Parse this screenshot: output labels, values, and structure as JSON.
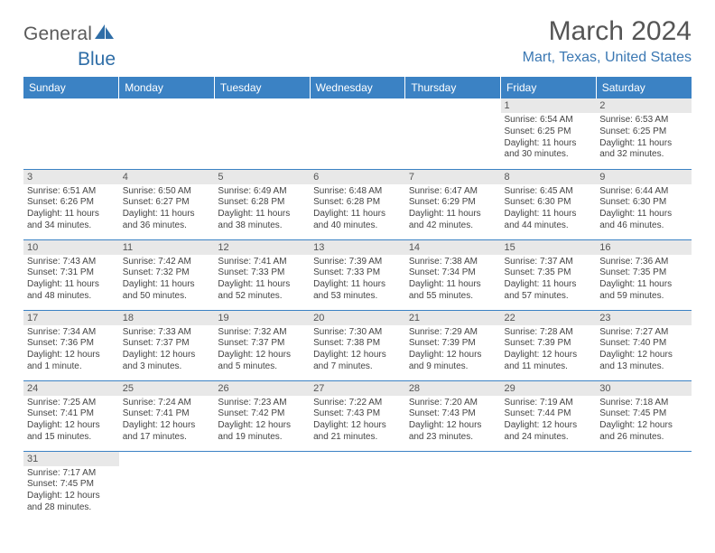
{
  "brand": {
    "word1": "General",
    "word2": "Blue"
  },
  "title": "March 2024",
  "location": "Mart, Texas, United States",
  "colors": {
    "header_blue": "#3b82c4",
    "link_blue": "#3b78b3",
    "row_band": "#e8e8e8",
    "text": "#444444",
    "title_gray": "#555555"
  },
  "day_headers": [
    "Sunday",
    "Monday",
    "Tuesday",
    "Wednesday",
    "Thursday",
    "Friday",
    "Saturday"
  ],
  "weeks": [
    [
      {
        "n": "",
        "sr": "",
        "ss": "",
        "d1": "",
        "d2": "",
        "empty": true
      },
      {
        "n": "",
        "sr": "",
        "ss": "",
        "d1": "",
        "d2": "",
        "empty": true
      },
      {
        "n": "",
        "sr": "",
        "ss": "",
        "d1": "",
        "d2": "",
        "empty": true
      },
      {
        "n": "",
        "sr": "",
        "ss": "",
        "d1": "",
        "d2": "",
        "empty": true
      },
      {
        "n": "",
        "sr": "",
        "ss": "",
        "d1": "",
        "d2": "",
        "empty": true
      },
      {
        "n": "1",
        "sr": "Sunrise: 6:54 AM",
        "ss": "Sunset: 6:25 PM",
        "d1": "Daylight: 11 hours",
        "d2": "and 30 minutes."
      },
      {
        "n": "2",
        "sr": "Sunrise: 6:53 AM",
        "ss": "Sunset: 6:25 PM",
        "d1": "Daylight: 11 hours",
        "d2": "and 32 minutes."
      }
    ],
    [
      {
        "n": "3",
        "sr": "Sunrise: 6:51 AM",
        "ss": "Sunset: 6:26 PM",
        "d1": "Daylight: 11 hours",
        "d2": "and 34 minutes."
      },
      {
        "n": "4",
        "sr": "Sunrise: 6:50 AM",
        "ss": "Sunset: 6:27 PM",
        "d1": "Daylight: 11 hours",
        "d2": "and 36 minutes."
      },
      {
        "n": "5",
        "sr": "Sunrise: 6:49 AM",
        "ss": "Sunset: 6:28 PM",
        "d1": "Daylight: 11 hours",
        "d2": "and 38 minutes."
      },
      {
        "n": "6",
        "sr": "Sunrise: 6:48 AM",
        "ss": "Sunset: 6:28 PM",
        "d1": "Daylight: 11 hours",
        "d2": "and 40 minutes."
      },
      {
        "n": "7",
        "sr": "Sunrise: 6:47 AM",
        "ss": "Sunset: 6:29 PM",
        "d1": "Daylight: 11 hours",
        "d2": "and 42 minutes."
      },
      {
        "n": "8",
        "sr": "Sunrise: 6:45 AM",
        "ss": "Sunset: 6:30 PM",
        "d1": "Daylight: 11 hours",
        "d2": "and 44 minutes."
      },
      {
        "n": "9",
        "sr": "Sunrise: 6:44 AM",
        "ss": "Sunset: 6:30 PM",
        "d1": "Daylight: 11 hours",
        "d2": "and 46 minutes."
      }
    ],
    [
      {
        "n": "10",
        "sr": "Sunrise: 7:43 AM",
        "ss": "Sunset: 7:31 PM",
        "d1": "Daylight: 11 hours",
        "d2": "and 48 minutes."
      },
      {
        "n": "11",
        "sr": "Sunrise: 7:42 AM",
        "ss": "Sunset: 7:32 PM",
        "d1": "Daylight: 11 hours",
        "d2": "and 50 minutes."
      },
      {
        "n": "12",
        "sr": "Sunrise: 7:41 AM",
        "ss": "Sunset: 7:33 PM",
        "d1": "Daylight: 11 hours",
        "d2": "and 52 minutes."
      },
      {
        "n": "13",
        "sr": "Sunrise: 7:39 AM",
        "ss": "Sunset: 7:33 PM",
        "d1": "Daylight: 11 hours",
        "d2": "and 53 minutes."
      },
      {
        "n": "14",
        "sr": "Sunrise: 7:38 AM",
        "ss": "Sunset: 7:34 PM",
        "d1": "Daylight: 11 hours",
        "d2": "and 55 minutes."
      },
      {
        "n": "15",
        "sr": "Sunrise: 7:37 AM",
        "ss": "Sunset: 7:35 PM",
        "d1": "Daylight: 11 hours",
        "d2": "and 57 minutes."
      },
      {
        "n": "16",
        "sr": "Sunrise: 7:36 AM",
        "ss": "Sunset: 7:35 PM",
        "d1": "Daylight: 11 hours",
        "d2": "and 59 minutes."
      }
    ],
    [
      {
        "n": "17",
        "sr": "Sunrise: 7:34 AM",
        "ss": "Sunset: 7:36 PM",
        "d1": "Daylight: 12 hours",
        "d2": "and 1 minute."
      },
      {
        "n": "18",
        "sr": "Sunrise: 7:33 AM",
        "ss": "Sunset: 7:37 PM",
        "d1": "Daylight: 12 hours",
        "d2": "and 3 minutes."
      },
      {
        "n": "19",
        "sr": "Sunrise: 7:32 AM",
        "ss": "Sunset: 7:37 PM",
        "d1": "Daylight: 12 hours",
        "d2": "and 5 minutes."
      },
      {
        "n": "20",
        "sr": "Sunrise: 7:30 AM",
        "ss": "Sunset: 7:38 PM",
        "d1": "Daylight: 12 hours",
        "d2": "and 7 minutes."
      },
      {
        "n": "21",
        "sr": "Sunrise: 7:29 AM",
        "ss": "Sunset: 7:39 PM",
        "d1": "Daylight: 12 hours",
        "d2": "and 9 minutes."
      },
      {
        "n": "22",
        "sr": "Sunrise: 7:28 AM",
        "ss": "Sunset: 7:39 PM",
        "d1": "Daylight: 12 hours",
        "d2": "and 11 minutes."
      },
      {
        "n": "23",
        "sr": "Sunrise: 7:27 AM",
        "ss": "Sunset: 7:40 PM",
        "d1": "Daylight: 12 hours",
        "d2": "and 13 minutes."
      }
    ],
    [
      {
        "n": "24",
        "sr": "Sunrise: 7:25 AM",
        "ss": "Sunset: 7:41 PM",
        "d1": "Daylight: 12 hours",
        "d2": "and 15 minutes."
      },
      {
        "n": "25",
        "sr": "Sunrise: 7:24 AM",
        "ss": "Sunset: 7:41 PM",
        "d1": "Daylight: 12 hours",
        "d2": "and 17 minutes."
      },
      {
        "n": "26",
        "sr": "Sunrise: 7:23 AM",
        "ss": "Sunset: 7:42 PM",
        "d1": "Daylight: 12 hours",
        "d2": "and 19 minutes."
      },
      {
        "n": "27",
        "sr": "Sunrise: 7:22 AM",
        "ss": "Sunset: 7:43 PM",
        "d1": "Daylight: 12 hours",
        "d2": "and 21 minutes."
      },
      {
        "n": "28",
        "sr": "Sunrise: 7:20 AM",
        "ss": "Sunset: 7:43 PM",
        "d1": "Daylight: 12 hours",
        "d2": "and 23 minutes."
      },
      {
        "n": "29",
        "sr": "Sunrise: 7:19 AM",
        "ss": "Sunset: 7:44 PM",
        "d1": "Daylight: 12 hours",
        "d2": "and 24 minutes."
      },
      {
        "n": "30",
        "sr": "Sunrise: 7:18 AM",
        "ss": "Sunset: 7:45 PM",
        "d1": "Daylight: 12 hours",
        "d2": "and 26 minutes."
      }
    ],
    [
      {
        "n": "31",
        "sr": "Sunrise: 7:17 AM",
        "ss": "Sunset: 7:45 PM",
        "d1": "Daylight: 12 hours",
        "d2": "and 28 minutes."
      },
      {
        "n": "",
        "sr": "",
        "ss": "",
        "d1": "",
        "d2": "",
        "empty": true
      },
      {
        "n": "",
        "sr": "",
        "ss": "",
        "d1": "",
        "d2": "",
        "empty": true
      },
      {
        "n": "",
        "sr": "",
        "ss": "",
        "d1": "",
        "d2": "",
        "empty": true
      },
      {
        "n": "",
        "sr": "",
        "ss": "",
        "d1": "",
        "d2": "",
        "empty": true
      },
      {
        "n": "",
        "sr": "",
        "ss": "",
        "d1": "",
        "d2": "",
        "empty": true
      },
      {
        "n": "",
        "sr": "",
        "ss": "",
        "d1": "",
        "d2": "",
        "empty": true
      }
    ]
  ]
}
